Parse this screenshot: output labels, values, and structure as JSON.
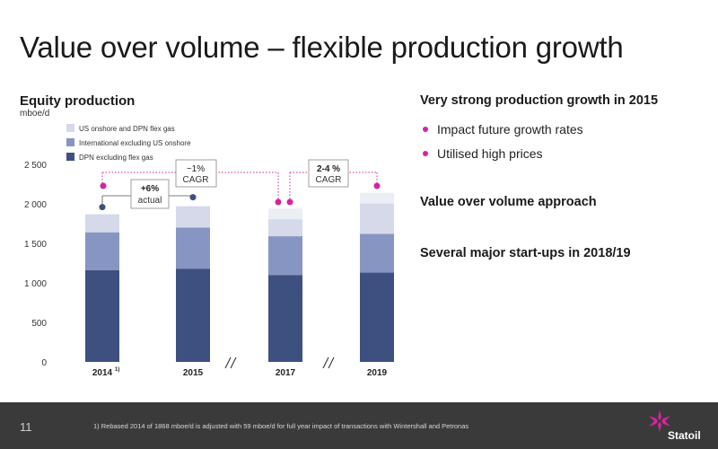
{
  "slide": {
    "title": "Value over volume – flexible production growth",
    "page_number": "11",
    "footnote": "1)     Rebased 2014 of 1868 mboe/d is adjusted with 59 mboe/d for full year impact of transactions with Wintershall and Petronas",
    "logo_text": "Statoil"
  },
  "right_panel": {
    "heading1": "Very strong production growth in 2015",
    "bullets": [
      "Impact future growth rates",
      "Utilised high prices"
    ],
    "heading2": "Value over volume approach",
    "heading3": "Several major start-ups in 2018/19"
  },
  "chart_data": {
    "type": "bar",
    "stacked": true,
    "title": "Equity production",
    "ylabel": "mboe/d",
    "categories": [
      "2014",
      "2015",
      "2017",
      "2019"
    ],
    "category_footnote": [
      "1)",
      "",
      "",
      ""
    ],
    "ylim": [
      0,
      2500
    ],
    "yticks": [
      0,
      500,
      1000,
      1500,
      2000,
      2500
    ],
    "ytick_labels": [
      "0",
      "500",
      "1 000",
      "1 500",
      "2 000",
      "2 500"
    ],
    "series": [
      {
        "name": "DPN excluding flex gas",
        "color": "#3d5080",
        "values": [
          1160,
          1180,
          1100,
          1130
        ]
      },
      {
        "name": "International excluding US onshore",
        "color": "#8795c2",
        "values": [
          480,
          520,
          490,
          490
        ]
      },
      {
        "name": "US onshore and DPN flex gas",
        "color": "#d5d9ea",
        "values": [
          228,
          270,
          350,
          520
        ]
      }
    ],
    "projected_categories": [
      "2017",
      "2019"
    ],
    "axis_breaks": [
      "2015-2017",
      "2017-2019"
    ],
    "legend_position": "top-left",
    "annotations": [
      {
        "label": "+6%",
        "sublabel": "actual",
        "from": "2014",
        "to": "2015"
      },
      {
        "label": "~1%",
        "sublabel": "CAGR",
        "from": "2014",
        "to": "2017"
      },
      {
        "label": "2-4 %",
        "sublabel": "CAGR",
        "from": "2017",
        "to": "2019"
      }
    ],
    "colors": {
      "accent": "#d6249f",
      "marker_dark": "#3d5080"
    }
  }
}
